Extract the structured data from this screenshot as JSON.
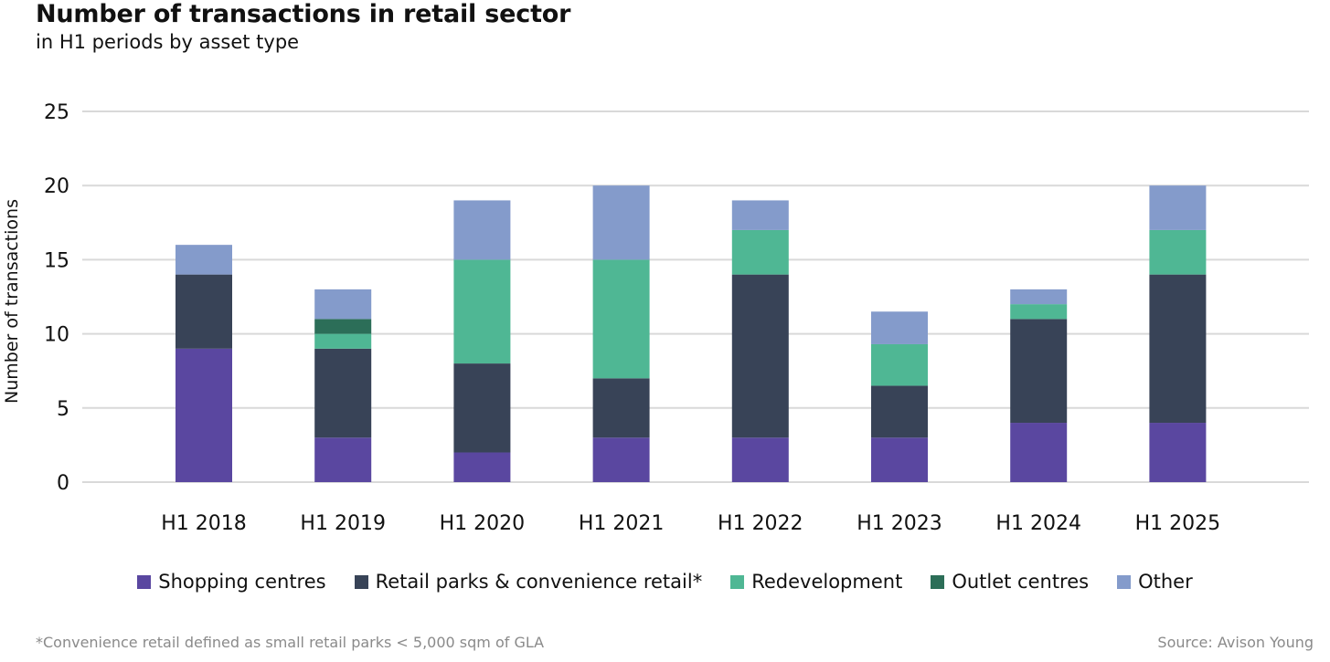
{
  "header": {
    "title": "Number of transactions in retail sector",
    "subtitle": "in H1 periods by asset type"
  },
  "chart_data": {
    "type": "bar",
    "stacked": true,
    "title": "Number of transactions in retail sector",
    "subtitle": "in H1 periods by asset type",
    "xlabel": "",
    "ylabel": "Number of transactions",
    "ylim": [
      0,
      25
    ],
    "yticks": [
      0,
      5,
      10,
      15,
      20,
      25
    ],
    "grid": true,
    "legend_position": "bottom",
    "categories": [
      "H1 2018",
      "H1 2019",
      "H1 2020",
      "H1 2021",
      "H1 2022",
      "H1 2023",
      "H1 2024",
      "H1 2025"
    ],
    "series": [
      {
        "name": "Shopping centres",
        "color": "#5a47a0",
        "values": [
          9,
          3,
          2,
          3,
          3,
          3,
          4,
          4
        ]
      },
      {
        "name": "Retail parks & convenience retail*",
        "color": "#384357",
        "values": [
          5,
          6,
          6,
          4,
          11,
          3.5,
          7,
          10
        ]
      },
      {
        "name": "Redevelopment",
        "color": "#4fb794",
        "values": [
          0,
          1,
          7,
          8,
          3,
          2.8,
          1,
          3
        ]
      },
      {
        "name": "Outlet centres",
        "color": "#2c6e58",
        "values": [
          0,
          1,
          0,
          0,
          0,
          0,
          0,
          0
        ]
      },
      {
        "name": "Other",
        "color": "#849bcb",
        "values": [
          2,
          2,
          4,
          5,
          2,
          2.2,
          1,
          3
        ]
      }
    ]
  },
  "footer": {
    "footnote": "*Convenience retail defined as small retail parks < 5,000 sqm of GLA",
    "source": "Source: Avison Young"
  }
}
